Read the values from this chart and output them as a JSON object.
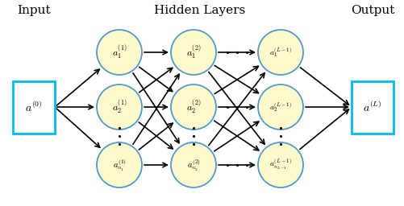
{
  "title_input": "Input",
  "title_hidden": "Hidden Layers",
  "title_output": "Output",
  "node_fill": "#FFFACD",
  "node_edge": "#5599CC",
  "box_fill": "#ffffff",
  "box_edge": "#00BBEE",
  "arrow_color": "#000000",
  "background_color": "#ffffff",
  "input_label": "$a^{(0)}$",
  "output_label": "$a^{(L)}$",
  "layer1_labels": [
    "$a_1^{(1)}$",
    "$a_2^{(1)}$",
    "$a_{n_1}^{(1)}$"
  ],
  "layer2_labels": [
    "$a_1^{(2)}$",
    "$a_2^{(2)}$",
    "$a_{n_2}^{(2)}$"
  ],
  "layerL_labels": [
    "$a_1^{(L-1)}$",
    "$a_2^{(L-1)}$",
    "$a_{n_{L-1}}^{(L-1)}$"
  ]
}
